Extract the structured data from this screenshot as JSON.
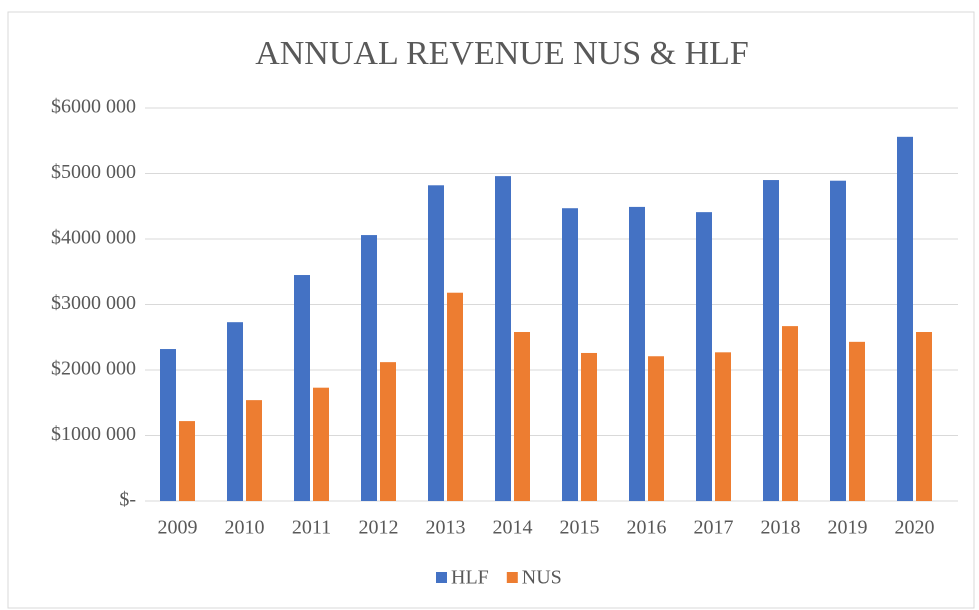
{
  "chart_data": {
    "type": "bar",
    "title": "ANNUAL REVENUE NUS & HLF",
    "categories": [
      "2009",
      "2010",
      "2011",
      "2012",
      "2013",
      "2014",
      "2015",
      "2016",
      "2017",
      "2018",
      "2019",
      "2020"
    ],
    "series": [
      {
        "name": "HLF",
        "color": "#4472c4",
        "values": [
          2320000,
          2730000,
          3450000,
          4060000,
          4820000,
          4960000,
          4470000,
          4490000,
          4410000,
          4900000,
          4890000,
          5560000
        ]
      },
      {
        "name": "NUS",
        "color": "#ed7d31",
        "values": [
          1220000,
          1540000,
          1730000,
          2120000,
          3180000,
          2580000,
          2260000,
          2210000,
          2270000,
          2670000,
          2430000,
          2580000
        ]
      }
    ],
    "ylim": [
      0,
      6000000
    ],
    "yticks": [
      {
        "value": 0,
        "label": "$-"
      },
      {
        "value": 1000000,
        "label": "$1000 000"
      },
      {
        "value": 2000000,
        "label": "$2000 000"
      },
      {
        "value": 3000000,
        "label": "$3000 000"
      },
      {
        "value": 4000000,
        "label": "$4000 000"
      },
      {
        "value": 5000000,
        "label": "$5000 000"
      },
      {
        "value": 6000000,
        "label": "$6000 000"
      }
    ],
    "grid": true,
    "legend": "bottom"
  }
}
